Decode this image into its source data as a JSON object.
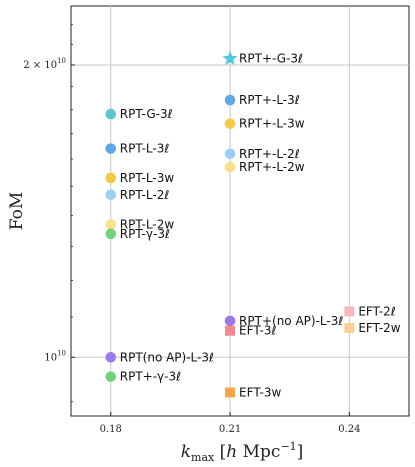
{
  "chart_data": {
    "type": "scatter",
    "xlabel": "k_max [h Mpc^-1]",
    "ylabel": "FoM",
    "xlim": [
      0.17,
      0.255
    ],
    "ylim": [
      8700000000.0,
      23000000000.0
    ],
    "yscale": "log",
    "xticks": [
      {
        "value": 0.18,
        "label": "0.18"
      },
      {
        "value": 0.21,
        "label": "0.21"
      },
      {
        "value": 0.24,
        "label": "0.24"
      }
    ],
    "yticks": [
      {
        "value": 20000000000.0,
        "label": "2 × 10^10"
      },
      {
        "value": 10000000000.0,
        "label": "10^10"
      }
    ],
    "grid": "on",
    "points": [
      {
        "label": "RPT+-G-3ℓ",
        "x": 0.21,
        "y": 20300000000.0,
        "color": "#56c6d8",
        "marker": "star"
      },
      {
        "label": "RPT-G-3ℓ",
        "x": 0.18,
        "y": 17800000000.0,
        "color": "#5bc4cf",
        "marker": "circle"
      },
      {
        "label": "RPT+-L-3ℓ",
        "x": 0.21,
        "y": 18400000000.0,
        "color": "#5fa8e4",
        "marker": "circle"
      },
      {
        "label": "RPT+-L-3w",
        "x": 0.21,
        "y": 17400000000.0,
        "color": "#f2c94a",
        "marker": "circle"
      },
      {
        "label": "RPT-L-3ℓ",
        "x": 0.18,
        "y": 16400000000.0,
        "color": "#5fa8e4",
        "marker": "circle"
      },
      {
        "label": "RPT+-L-2ℓ",
        "x": 0.21,
        "y": 16200000000.0,
        "color": "#9ccff2",
        "marker": "circle"
      },
      {
        "label": "RPT+-L-2w",
        "x": 0.21,
        "y": 15700000000.0,
        "color": "#f7e08a",
        "marker": "circle"
      },
      {
        "label": "RPT-L-3w",
        "x": 0.18,
        "y": 15300000000.0,
        "color": "#f2c94a",
        "marker": "circle"
      },
      {
        "label": "RPT-L-2ℓ",
        "x": 0.18,
        "y": 14700000000.0,
        "color": "#9ccff2",
        "marker": "circle"
      },
      {
        "label": "RPT-L-2w",
        "x": 0.18,
        "y": 13700000000.0,
        "color": "#f7e08a",
        "marker": "circle"
      },
      {
        "label": "RPT-γ-3ℓ",
        "x": 0.18,
        "y": 13400000000.0,
        "color": "#72d17a",
        "marker": "circle"
      },
      {
        "label": "RPT+(no AP)-L-3ℓ",
        "x": 0.21,
        "y": 10900000000.0,
        "color": "#9b7ae8",
        "marker": "circle"
      },
      {
        "label": "EFT-3ℓ",
        "x": 0.21,
        "y": 10650000000.0,
        "color": "#ef8a8f",
        "marker": "square"
      },
      {
        "label": "EFT-2ℓ",
        "x": 0.24,
        "y": 11150000000.0,
        "color": "#f6b8bc",
        "marker": "square"
      },
      {
        "label": "EFT-2w",
        "x": 0.24,
        "y": 10720000000.0,
        "color": "#fbcf96",
        "marker": "square"
      },
      {
        "label": "RPT(no AP)-L-3ℓ",
        "x": 0.18,
        "y": 10000000000.0,
        "color": "#9b7ae8",
        "marker": "circle"
      },
      {
        "label": "RPT+-γ-3ℓ",
        "x": 0.18,
        "y": 9550000000.0,
        "color": "#72d17a",
        "marker": "circle"
      },
      {
        "label": "EFT-3w",
        "x": 0.21,
        "y": 9200000000.0,
        "color": "#f5a34f",
        "marker": "square"
      }
    ]
  }
}
